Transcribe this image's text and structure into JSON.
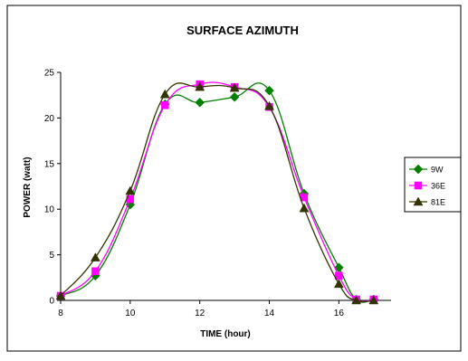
{
  "chart_data": {
    "type": "line",
    "title": "SURFACE AZIMUTH",
    "xlabel": "TIME (hour)",
    "ylabel": "POWER (watt)",
    "xlim": [
      8,
      17.5
    ],
    "ylim": [
      0,
      25
    ],
    "xticks": [
      8,
      10,
      12,
      14,
      16
    ],
    "yticks": [
      0,
      5,
      10,
      15,
      20,
      25
    ],
    "grid": false,
    "legend_position": "right",
    "series": [
      {
        "name": "9W",
        "color": "#008000",
        "marker": "diamond",
        "x": [
          8,
          9,
          10,
          11,
          12,
          13,
          14,
          15,
          16,
          16.5,
          17
        ],
        "y": [
          0.5,
          2.7,
          10.5,
          21.5,
          21.7,
          22.3,
          23.0,
          11.7,
          3.6,
          0.1,
          0.1
        ]
      },
      {
        "name": "36E",
        "color": "#ff00ff",
        "marker": "square",
        "x": [
          8,
          9,
          10,
          11,
          12,
          13,
          14,
          15,
          16,
          16.5,
          17
        ],
        "y": [
          0.5,
          3.2,
          11.1,
          21.4,
          23.7,
          23.4,
          21.2,
          11.3,
          2.7,
          0.1,
          0.1
        ]
      },
      {
        "name": "81E",
        "color": "#333300",
        "marker": "triangle",
        "x": [
          8,
          9,
          10,
          11,
          12,
          13,
          14,
          15,
          16,
          16.5,
          17
        ],
        "y": [
          0.5,
          4.7,
          12.0,
          22.6,
          23.4,
          23.3,
          21.3,
          10.1,
          1.8,
          0.0,
          0.0
        ]
      }
    ]
  }
}
